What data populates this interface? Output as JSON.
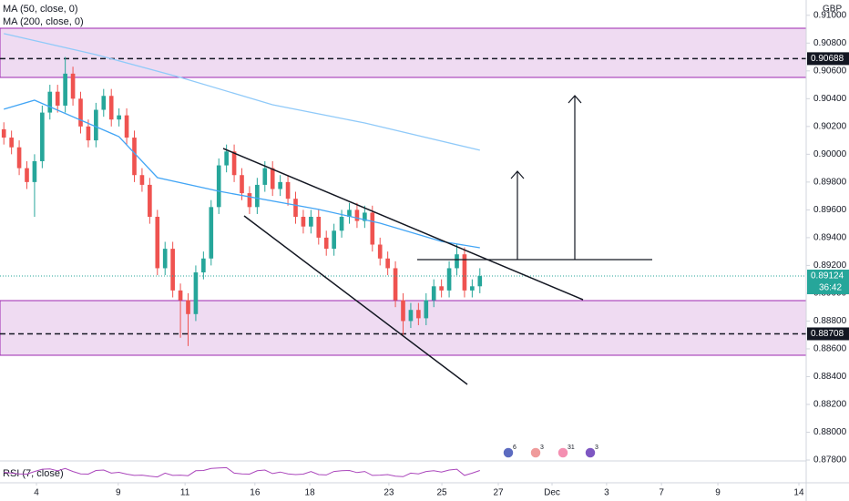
{
  "chart_data": {
    "type": "candlestick",
    "currency": "GBP",
    "x": [
      0,
      2,
      4,
      6,
      8,
      10,
      12,
      14,
      16,
      18,
      20,
      22,
      24,
      26,
      28,
      30,
      32,
      34,
      36,
      38,
      40,
      42,
      44,
      46,
      48,
      50,
      52,
      54,
      56,
      58,
      60,
      62,
      64,
      66,
      68,
      70,
      72,
      74,
      76,
      78,
      80,
      82,
      84,
      86,
      88,
      90,
      92,
      94,
      96,
      98,
      100,
      102,
      104,
      106,
      108,
      110,
      112,
      114,
      116,
      118,
      120,
      122,
      124
    ],
    "open": [
      0.9018,
      0.9012,
      0.9005,
      0.899,
      0.898,
      0.8995,
      0.903,
      0.9045,
      0.9035,
      0.9058,
      0.904,
      0.902,
      0.901,
      0.9032,
      0.9042,
      0.9025,
      0.9028,
      0.9012,
      0.8985,
      0.8978,
      0.8955,
      0.8918,
      0.8932,
      0.8902,
      0.8895,
      0.8885,
      0.8915,
      0.8925,
      0.8962,
      0.8992,
      0.9002,
      0.8985,
      0.8972,
      0.8962,
      0.8978,
      0.899,
      0.8975,
      0.898,
      0.8968,
      0.8955,
      0.8948,
      0.8955,
      0.894,
      0.8932,
      0.8945,
      0.8955,
      0.896,
      0.8952,
      0.8958,
      0.8935,
      0.8925,
      0.8918,
      0.8895,
      0.888,
      0.8888,
      0.8882,
      0.8895,
      0.8905,
      0.8902,
      0.8918,
      0.8928,
      0.8902,
      0.8905
    ],
    "high": [
      0.9023,
      0.9017,
      0.901,
      0.8995,
      0.9,
      0.9035,
      0.905,
      0.905,
      0.907,
      0.9063,
      0.9045,
      0.9025,
      0.9037,
      0.9047,
      0.9047,
      0.9033,
      0.9033,
      0.9017,
      0.899,
      0.8983,
      0.896,
      0.8937,
      0.8937,
      0.8907,
      0.89,
      0.892,
      0.893,
      0.8967,
      0.8997,
      0.9007,
      0.9007,
      0.899,
      0.8977,
      0.8983,
      0.8995,
      0.8995,
      0.8985,
      0.8985,
      0.8973,
      0.896,
      0.896,
      0.896,
      0.8945,
      0.895,
      0.896,
      0.8965,
      0.8965,
      0.8963,
      0.8963,
      0.894,
      0.893,
      0.8923,
      0.89,
      0.8893,
      0.8893,
      0.89,
      0.891,
      0.891,
      0.8923,
      0.8935,
      0.8933,
      0.891,
      0.8918
    ],
    "low": [
      0.9007,
      0.9,
      0.8985,
      0.8975,
      0.8955,
      0.899,
      0.9025,
      0.903,
      0.903,
      0.9035,
      0.9015,
      0.9005,
      0.9005,
      0.9027,
      0.902,
      0.902,
      0.9007,
      0.898,
      0.8973,
      0.895,
      0.8913,
      0.8913,
      0.8897,
      0.8868,
      0.8862,
      0.888,
      0.891,
      0.892,
      0.8957,
      0.8987,
      0.898,
      0.8967,
      0.8957,
      0.8957,
      0.8973,
      0.897,
      0.897,
      0.8963,
      0.895,
      0.8943,
      0.8943,
      0.8935,
      0.8927,
      0.8927,
      0.894,
      0.895,
      0.8947,
      0.8947,
      0.893,
      0.892,
      0.8913,
      0.889,
      0.887,
      0.8875,
      0.8877,
      0.8877,
      0.889,
      0.8897,
      0.8897,
      0.8913,
      0.8897,
      0.8897,
      0.89
    ],
    "close": [
      0.9012,
      0.9005,
      0.899,
      0.898,
      0.8995,
      0.903,
      0.9045,
      0.9035,
      0.9058,
      0.904,
      0.902,
      0.901,
      0.9032,
      0.9042,
      0.9025,
      0.9028,
      0.9012,
      0.8985,
      0.8978,
      0.8955,
      0.8918,
      0.8932,
      0.8902,
      0.8895,
      0.8885,
      0.8915,
      0.8925,
      0.8962,
      0.8992,
      0.9002,
      0.8985,
      0.8972,
      0.8962,
      0.8978,
      0.899,
      0.8975,
      0.898,
      0.8968,
      0.8955,
      0.8948,
      0.8955,
      0.894,
      0.8932,
      0.8945,
      0.8955,
      0.896,
      0.8952,
      0.8958,
      0.8935,
      0.8925,
      0.8918,
      0.8895,
      0.888,
      0.8888,
      0.8882,
      0.8895,
      0.8905,
      0.8902,
      0.8918,
      0.8928,
      0.8902,
      0.8905,
      0.89124
    ],
    "up_color": "#26a69a",
    "down_color": "#ef5350",
    "xlim": [
      -1,
      209
    ],
    "xticks": [
      {
        "value": 8.5,
        "label": "4"
      },
      {
        "value": 29.8,
        "label": "9"
      },
      {
        "value": 47.2,
        "label": "11"
      },
      {
        "value": 65.4,
        "label": "16"
      },
      {
        "value": 79.7,
        "label": "18"
      },
      {
        "value": 100.3,
        "label": "23"
      },
      {
        "value": 114.1,
        "label": "25"
      },
      {
        "value": 128.8,
        "label": "27"
      },
      {
        "value": 142.8,
        "label": "Dec"
      },
      {
        "value": 157.0,
        "label": "3"
      },
      {
        "value": 171.3,
        "label": "7"
      },
      {
        "value": 186.0,
        "label": "9"
      },
      {
        "value": 207.1,
        "label": "14"
      }
    ],
    "ylim": [
      0.878,
      0.9111
    ],
    "yticks": [
      {
        "value": 0.878,
        "label": "0.87800"
      },
      {
        "value": 0.88,
        "label": "0.88000"
      },
      {
        "value": 0.882,
        "label": "0.88200"
      },
      {
        "value": 0.884,
        "label": "0.88400"
      },
      {
        "value": 0.886,
        "label": "0.88600"
      },
      {
        "value": 0.888,
        "label": "0.88800"
      },
      {
        "value": 0.89,
        "label": "0.89000"
      },
      {
        "value": 0.892,
        "label": "0.89200"
      },
      {
        "value": 0.894,
        "label": "0.89400"
      },
      {
        "value": 0.896,
        "label": "0.89600"
      },
      {
        "value": 0.898,
        "label": "0.89800"
      },
      {
        "value": 0.9,
        "label": "0.90000"
      },
      {
        "value": 0.902,
        "label": "0.90200"
      },
      {
        "value": 0.904,
        "label": "0.90400"
      },
      {
        "value": 0.906,
        "label": "0.90600"
      },
      {
        "value": 0.908,
        "label": "0.90800"
      },
      {
        "value": 0.91,
        "label": "0.91000"
      }
    ],
    "series": [
      {
        "name": "MA (50, close, 0)",
        "color": "#42a5f5",
        "x": [
          0,
          8,
          30,
          40,
          56,
          82,
          98,
          114,
          124
        ],
        "values": [
          0.90324,
          0.90389,
          0.90127,
          0.89832,
          0.89734,
          0.89603,
          0.89504,
          0.89373,
          0.89327
        ]
      },
      {
        "name": "MA (200, close, 0)",
        "color": "#90caf9",
        "x": [
          0,
          24,
          46,
          70,
          94,
          124
        ],
        "values": [
          0.90868,
          0.90717,
          0.90553,
          0.90356,
          0.90225,
          0.90029
        ]
      }
    ],
    "levels": [
      0.90688,
      0.88708
    ],
    "last_price": 0.89124,
    "countdown": "36:42",
    "rsi": {
      "name": "RSI (7, close)",
      "color": "#ab47bc",
      "ylim": [
        0,
        100
      ],
      "values": [
        50,
        45,
        40,
        38,
        55,
        70,
        72,
        60,
        75,
        55,
        40,
        38,
        62,
        65,
        45,
        50,
        38,
        30,
        32,
        25,
        20,
        45,
        30,
        32,
        28,
        60,
        62,
        75,
        78,
        80,
        45,
        40,
        38,
        60,
        65,
        42,
        52,
        40,
        35,
        38,
        55,
        35,
        33,
        55,
        60,
        62,
        48,
        55,
        30,
        32,
        35,
        25,
        22,
        45,
        40,
        55,
        60,
        52,
        65,
        70,
        30,
        45,
        62
      ]
    },
    "events": [
      "6",
      "3",
      "31",
      "3"
    ]
  }
}
